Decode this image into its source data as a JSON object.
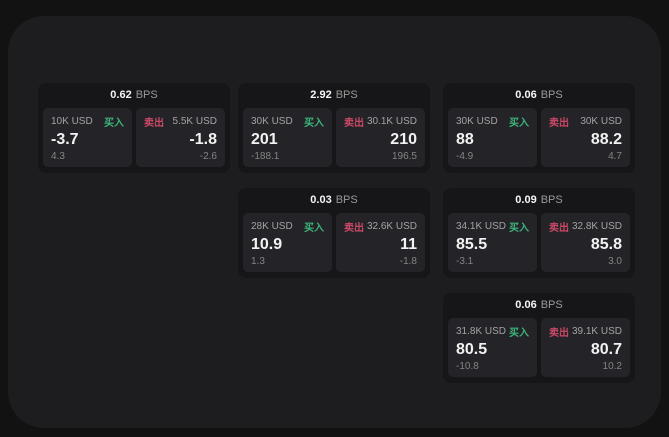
{
  "labels": {
    "buy": "买入",
    "sell": "卖出",
    "bps_unit": "BPS"
  },
  "colors": {
    "buy_green": "#3cb47a",
    "sell_red": "#c94866",
    "panel_bg": "#1d1d1f",
    "card_bg": "#161618",
    "cell_bg": "#242428"
  },
  "cards": [
    {
      "bps": "0.62",
      "buy": {
        "amount": "10K USD",
        "price": "-3.7",
        "delta": "4.3"
      },
      "sell": {
        "amount": "5.5K USD",
        "price": "-1.8",
        "delta": "-2.6"
      }
    },
    {
      "bps": "2.92",
      "buy": {
        "amount": "30K USD",
        "price": "201",
        "delta": "-188.1"
      },
      "sell": {
        "amount": "30.1K USD",
        "price": "210",
        "delta": "196.5"
      }
    },
    {
      "bps": "0.06",
      "buy": {
        "amount": "30K USD",
        "price": "88",
        "delta": "-4.9"
      },
      "sell": {
        "amount": "30K USD",
        "price": "88.2",
        "delta": "4.7"
      }
    },
    {
      "bps": "0.03",
      "buy": {
        "amount": "28K USD",
        "price": "10.9",
        "delta": "1.3"
      },
      "sell": {
        "amount": "32.6K USD",
        "price": "11",
        "delta": "-1.8"
      }
    },
    {
      "bps": "0.09",
      "buy": {
        "amount": "34.1K USD",
        "price": "85.5",
        "delta": "-3.1"
      },
      "sell": {
        "amount": "32.8K USD",
        "price": "85.8",
        "delta": "3.0"
      }
    },
    {
      "bps": "0.06",
      "buy": {
        "amount": "31.8K USD",
        "price": "80.5",
        "delta": "-10.8"
      },
      "sell": {
        "amount": "39.1K USD",
        "price": "80.7",
        "delta": "10.2"
      }
    }
  ]
}
